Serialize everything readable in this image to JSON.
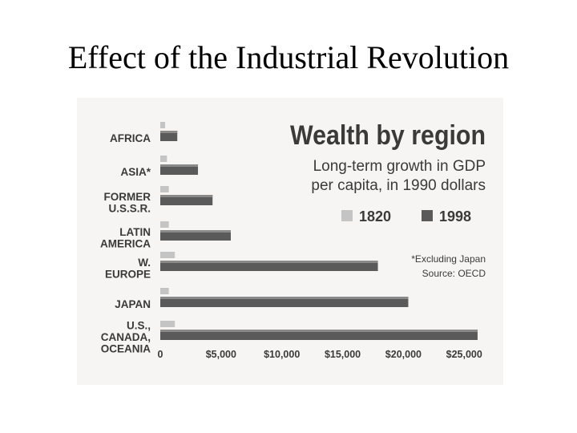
{
  "slide": {
    "title": "Effect of the Industrial Revolution"
  },
  "chart_data": {
    "type": "bar",
    "orientation": "horizontal",
    "title": "Wealth by region",
    "subtitle_lines": [
      "Long-term growth in GDP",
      "per capita, in 1990 dollars"
    ],
    "categories": [
      [
        "AFRICA"
      ],
      [
        "ASIA*"
      ],
      [
        "FORMER",
        "U.S.S.R."
      ],
      [
        "LATIN",
        "AMERICA"
      ],
      [
        "W.",
        "EUROPE"
      ],
      [
        "JAPAN"
      ],
      [
        "U.S.,",
        "CANADA,",
        "OCEANIA"
      ]
    ],
    "series": [
      {
        "name": "1820",
        "color": "#c4c4c4",
        "values": [
          400,
          550,
          700,
          700,
          1200,
          700,
          1200
        ]
      },
      {
        "name": "1998",
        "color": "#5a5a5a",
        "values": [
          1400,
          3100,
          4300,
          5800,
          17900,
          20400,
          26100
        ]
      }
    ],
    "ticks": [
      "0",
      "$5,000",
      "$10,000",
      "$15,000",
      "$20,000",
      "$25,000"
    ],
    "tick_values": [
      0,
      5000,
      10000,
      15000,
      20000,
      25000
    ],
    "xlim": [
      0,
      26500
    ],
    "notes": [
      "*Excluding Japan",
      "Source: OECD"
    ],
    "legend_position": "top-right"
  }
}
